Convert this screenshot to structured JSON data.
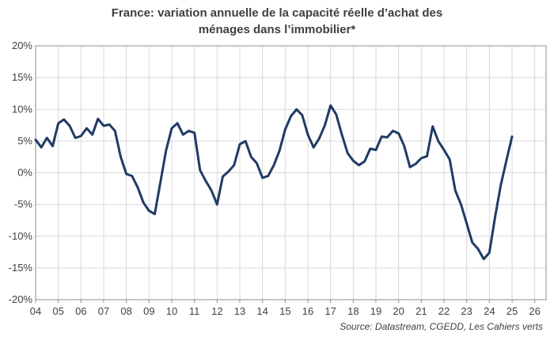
{
  "chart_data": {
    "type": "line",
    "title": "France: variation annuelle de la capacité réelle   d’achat des\nménages dans l’immobilier*",
    "source": "Source: Datastream, CGEDD, Les Cahiers verts",
    "xlim": [
      2004,
      2026.5
    ],
    "ylim": [
      -20,
      20
    ],
    "x_tick_labels": [
      "04",
      "05",
      "06",
      "07",
      "08",
      "09",
      "10",
      "11",
      "12",
      "13",
      "14",
      "15",
      "16",
      "17",
      "18",
      "19",
      "20",
      "21",
      "22",
      "23",
      "24",
      "25",
      "26"
    ],
    "y_tick_labels": [
      {
        "value": 20,
        "label": "20%"
      },
      {
        "value": 15,
        "label": "15%"
      },
      {
        "value": 10,
        "label": "10%"
      },
      {
        "value": 5,
        "label": "5%"
      },
      {
        "value": 0,
        "label": "0%"
      },
      {
        "value": -5,
        "label": "-5%"
      },
      {
        "value": -10,
        "label": "-10%"
      },
      {
        "value": -15,
        "label": "-15%"
      },
      {
        "value": -20,
        "label": "-20%"
      }
    ],
    "grid": true,
    "color": "#1f3b64",
    "series": [
      {
        "x": [
          2004.0,
          2004.25,
          2004.5,
          2004.75,
          2005.0,
          2005.25,
          2005.5,
          2005.75,
          2006.0,
          2006.25,
          2006.5,
          2006.75,
          2007.0,
          2007.25,
          2007.5,
          2007.75,
          2008.0,
          2008.25,
          2008.5,
          2008.75,
          2009.0,
          2009.25,
          2009.5,
          2009.75,
          2010.0,
          2010.25,
          2010.5,
          2010.75,
          2011.0,
          2011.25,
          2011.5,
          2011.75,
          2012.0,
          2012.25,
          2012.5,
          2012.75,
          2013.0,
          2013.25,
          2013.5,
          2013.75,
          2014.0,
          2014.25,
          2014.5,
          2014.75,
          2015.0,
          2015.25,
          2015.5,
          2015.75,
          2016.0,
          2016.25,
          2016.5,
          2016.75,
          2017.0,
          2017.25,
          2017.5,
          2017.75,
          2018.0,
          2018.25,
          2018.5,
          2018.75,
          2019.0,
          2019.25,
          2019.5,
          2019.75,
          2020.0,
          2020.25,
          2020.5,
          2020.75,
          2021.0,
          2021.25,
          2021.5,
          2021.75,
          2022.0,
          2022.25,
          2022.5,
          2022.75,
          2023.0,
          2023.25,
          2023.5,
          2023.75,
          2024.0,
          2024.25,
          2024.5,
          2024.75,
          2025.0
        ],
        "y": [
          5.2,
          4.0,
          5.5,
          4.2,
          7.8,
          8.4,
          7.4,
          5.5,
          5.8,
          7.0,
          6.0,
          8.5,
          7.4,
          7.6,
          6.6,
          2.5,
          -0.2,
          -0.5,
          -2.3,
          -4.7,
          -6.0,
          -6.5,
          -1.5,
          3.5,
          7.0,
          7.8,
          6.0,
          6.6,
          6.3,
          0.4,
          -1.3,
          -2.8,
          -5.0,
          -0.6,
          0.2,
          1.2,
          4.5,
          5.0,
          2.5,
          1.5,
          -0.8,
          -0.5,
          1.2,
          3.5,
          6.8,
          8.9,
          10.0,
          9.1,
          6.0,
          4.0,
          5.4,
          7.5,
          10.6,
          9.2,
          6.0,
          3.1,
          1.9,
          1.2,
          1.8,
          3.8,
          3.6,
          5.7,
          5.6,
          6.6,
          6.2,
          4.2,
          0.9,
          1.4,
          2.3,
          2.6,
          7.3,
          5.0,
          3.6,
          2.1,
          -2.8,
          -5.0,
          -8.0,
          -11.0,
          -12.0,
          -13.6,
          -12.6,
          -7.0,
          -2.0,
          1.9,
          5.7
        ]
      }
    ]
  }
}
